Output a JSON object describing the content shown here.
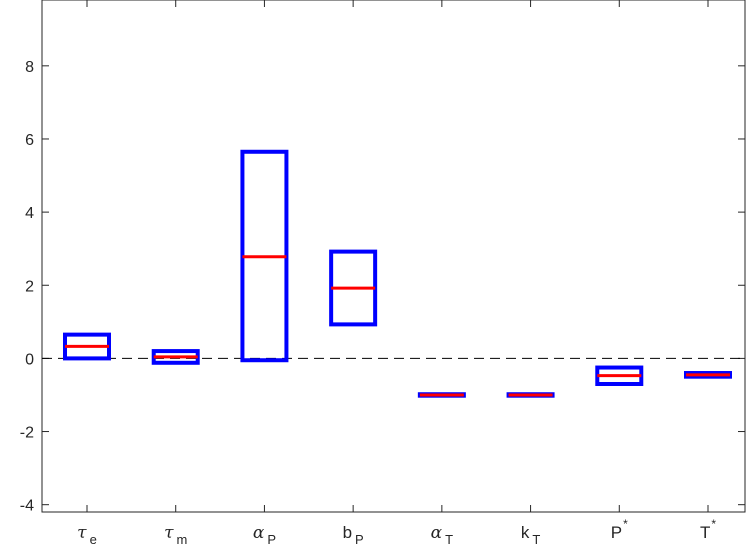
{
  "chart_data": {
    "type": "box",
    "title": "",
    "xlabel": "",
    "ylabel": "",
    "ylim": [
      -4.2,
      9.8
    ],
    "yticks": [
      -4,
      -2,
      0,
      2,
      4,
      6,
      8
    ],
    "ytick_labels": [
      "-4",
      "-2",
      "0",
      "2",
      "4",
      "6",
      "8"
    ],
    "reference_line": {
      "y": 0,
      "style": "dashed",
      "color": "#000000"
    },
    "box_color": "#0000ff",
    "median_color": "#ff0000",
    "categories": [
      {
        "base": "τ",
        "sub": "e",
        "sup": "",
        "italic": true
      },
      {
        "base": "τ",
        "sub": "m",
        "sup": "",
        "italic": true
      },
      {
        "base": "α",
        "sub": "P",
        "sup": "",
        "italic": true
      },
      {
        "base": "b",
        "sub": "P",
        "sup": "",
        "italic": false
      },
      {
        "base": "α",
        "sub": "T",
        "sup": "",
        "italic": true
      },
      {
        "base": "k",
        "sub": "T",
        "sup": "",
        "italic": false
      },
      {
        "base": "P",
        "sub": "",
        "sup": "*",
        "italic": false
      },
      {
        "base": "T",
        "sub": "",
        "sup": "*",
        "italic": false
      }
    ],
    "boxes": [
      {
        "low": 0.0,
        "high": 0.65,
        "median": 0.33
      },
      {
        "low": -0.12,
        "high": 0.2,
        "median": 0.04
      },
      {
        "low": -0.05,
        "high": 5.65,
        "median": 2.78
      },
      {
        "low": 0.93,
        "high": 2.92,
        "median": 1.92
      },
      {
        "low": -1.02,
        "high": -0.98,
        "median": -1.0
      },
      {
        "low": -1.02,
        "high": -0.98,
        "median": -1.0
      },
      {
        "low": -0.7,
        "high": -0.25,
        "median": -0.47
      },
      {
        "low": -0.5,
        "high": -0.4,
        "median": -0.45
      }
    ]
  }
}
